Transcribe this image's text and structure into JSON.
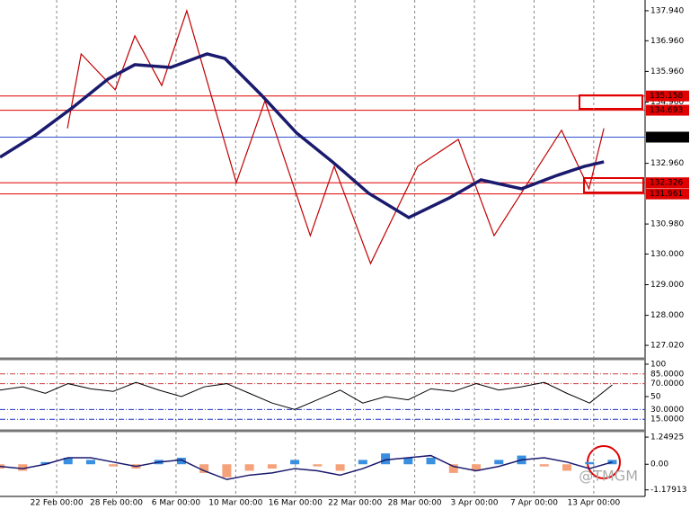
{
  "chart_data": [
    {
      "type": "line",
      "xlim": [
        -0.95,
        9.86
      ],
      "xticks": [
        {
          "value": 0,
          "label": "22 Feb 00:00"
        },
        {
          "value": 1,
          "label": "28 Feb 00:00"
        },
        {
          "value": 2,
          "label": "6 Mar 00:00"
        },
        {
          "value": 3,
          "label": "10 Mar 00:00"
        },
        {
          "value": 4,
          "label": "16 Mar 00:00"
        },
        {
          "value": 5,
          "label": "22 Mar 00:00"
        },
        {
          "value": 6,
          "label": "28 Mar 00:00"
        },
        {
          "value": 7,
          "label": "3 Apr 00:00"
        },
        {
          "value": 8,
          "label": "7 Apr 00:00"
        },
        {
          "value": 9,
          "label": "13 Apr 00:00"
        }
      ],
      "ylim": [
        126.61,
        138.29
      ],
      "yticks": [
        {
          "value": 137.94,
          "label": "137.940"
        },
        {
          "value": 136.96,
          "label": "136.960"
        },
        {
          "value": 135.96,
          "label": "135.960"
        },
        {
          "value": 134.96,
          "label": "134.960"
        },
        {
          "value": 132.96,
          "label": "132.960"
        },
        {
          "value": 130.98,
          "label": "130.980"
        },
        {
          "value": 130,
          "label": "130.000"
        },
        {
          "value": 129,
          "label": "129.000"
        },
        {
          "value": 128,
          "label": "128.000"
        },
        {
          "value": 127.02,
          "label": "127.020"
        }
      ],
      "price_levels": [
        {
          "value": 135.158,
          "color": "#e00000"
        },
        {
          "value": 134.693,
          "color": "#e00000"
        },
        {
          "value": 133.815,
          "color": "#000000"
        },
        {
          "value": 132.326,
          "color": "#e00000"
        },
        {
          "value": 131.961,
          "color": "#e00000"
        }
      ],
      "series": [
        {
          "color": "#c00000",
          "width": 1.2,
          "x": [
            0.18,
            0.41,
            0.98,
            1.31,
            1.76,
            2.18,
            3.01,
            3.49,
            4.25,
            4.65,
            5.26,
            6.05,
            6.73,
            7.33,
            8.46,
            8.92,
            9.17
          ],
          "values": [
            134.1,
            136.53,
            135.36,
            137.12,
            135.5,
            137.94,
            132.33,
            135.0,
            130.6,
            132.86,
            129.69,
            132.86,
            133.74,
            130.6,
            134.04,
            132.13,
            134.1
          ]
        },
        {
          "color": "#1a1a6e",
          "width": 3.5,
          "x": [
            -0.95,
            -0.35,
            0.26,
            0.86,
            1.31,
            1.91,
            2.52,
            2.82,
            3.42,
            4.02,
            4.62,
            5.23,
            5.9,
            6.58,
            7.11,
            7.79,
            8.39,
            8.84,
            9.17
          ],
          "values": [
            133.16,
            133.89,
            134.77,
            135.71,
            136.18,
            136.09,
            136.53,
            136.38,
            135.21,
            133.95,
            133.01,
            131.98,
            131.19,
            131.83,
            132.42,
            132.13,
            132.57,
            132.86,
            133.01
          ]
        }
      ],
      "watermark": "@TMGM"
    },
    {
      "type": "line",
      "xlim": [
        -0.95,
        9.86
      ],
      "ylim": [
        -1.4,
        106.9
      ],
      "yticks": [
        100,
        50
      ],
      "levels": [
        {
          "value": 85,
          "label": "85.0000",
          "color": "#d04040"
        },
        {
          "value": 70,
          "label": "70.0000",
          "color": "#d04040"
        },
        {
          "value": 30,
          "label": "30.0000",
          "color": "#2030c0"
        },
        {
          "value": 15,
          "label": "15.0000",
          "color": "#2030c0"
        }
      ],
      "series": [
        {
          "color": "#000000",
          "width": 1,
          "x": [
            -0.95,
            -0.57,
            -0.19,
            0.19,
            0.57,
            0.95,
            1.33,
            1.71,
            2.09,
            2.47,
            2.85,
            3.23,
            3.61,
            3.99,
            4.37,
            4.75,
            5.13,
            5.51,
            5.89,
            6.27,
            6.65,
            7.03,
            7.41,
            7.79,
            8.17,
            8.55,
            8.93,
            9.31
          ],
          "values": [
            60,
            65,
            55,
            70,
            62,
            58,
            72,
            60,
            50,
            65,
            70,
            55,
            40,
            30,
            45,
            60,
            40,
            50,
            45,
            62,
            58,
            70,
            60,
            65,
            72,
            55,
            40,
            68
          ]
        }
      ]
    },
    {
      "type": "bar",
      "xlim": [
        -0.95,
        9.86
      ],
      "ylim": [
        -1.48,
        1.5
      ],
      "yticks": [
        1.24925,
        {
          "value": 0,
          "label": "0.00"
        },
        -1.17913
      ],
      "pos_color": "#3a8fe0",
      "neg_color": "#f5a27a",
      "x": [
        -0.95,
        -0.57,
        -0.19,
        0.19,
        0.57,
        0.95,
        1.33,
        1.71,
        2.09,
        2.47,
        2.85,
        3.23,
        3.61,
        3.99,
        4.37,
        4.75,
        5.13,
        5.51,
        5.89,
        6.27,
        6.65,
        7.03,
        7.41,
        7.79,
        8.17,
        8.55,
        8.93,
        9.31
      ],
      "values": [
        -0.2,
        -0.3,
        0.1,
        0.3,
        0.2,
        -0.1,
        -0.2,
        0.2,
        0.3,
        -0.4,
        -0.6,
        -0.3,
        -0.2,
        0.2,
        -0.1,
        -0.3,
        0.2,
        0.5,
        0.3,
        0.3,
        -0.4,
        -0.3,
        0.2,
        0.4,
        -0.1,
        -0.3,
        0.1,
        0.2
      ],
      "series": [
        {
          "color": "#1a1a6e",
          "width": 1.5,
          "x": [
            -0.95,
            -0.57,
            -0.19,
            0.19,
            0.57,
            0.95,
            1.33,
            1.71,
            2.09,
            2.47,
            2.85,
            3.23,
            3.61,
            3.99,
            4.37,
            4.75,
            5.13,
            5.51,
            5.89,
            6.27,
            6.65,
            7.03,
            7.41,
            7.79,
            8.17,
            8.55,
            8.93,
            9.31
          ],
          "values": [
            -0.1,
            -0.2,
            0,
            0.3,
            0.3,
            0.1,
            -0.1,
            0.1,
            0.2,
            -0.3,
            -0.7,
            -0.5,
            -0.4,
            -0.2,
            -0.3,
            -0.5,
            -0.2,
            0.2,
            0.3,
            0.4,
            -0.1,
            -0.3,
            -0.1,
            0.2,
            0.3,
            0.1,
            -0.2,
            0.1
          ]
        }
      ]
    }
  ]
}
